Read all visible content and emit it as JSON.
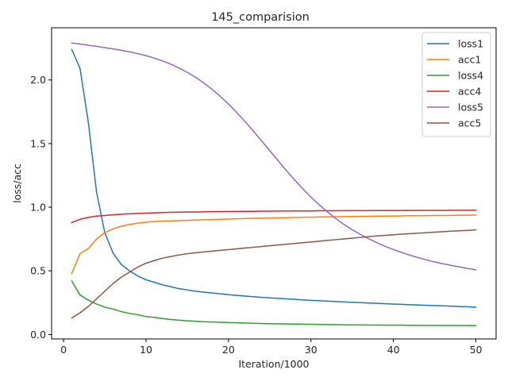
{
  "chart_data": {
    "type": "line",
    "title": "145_comparision",
    "xlabel": "Iteration/1000",
    "ylabel": "loss/acc",
    "xlim": [
      -1.45,
      52.45
    ],
    "ylim": [
      -0.035,
      2.41
    ],
    "xticks": [
      0,
      10,
      20,
      30,
      40,
      50
    ],
    "xtick_labels": [
      "0",
      "10",
      "20",
      "30",
      "40",
      "50"
    ],
    "yticks": [
      0.0,
      0.5,
      1.0,
      1.5,
      2.0
    ],
    "ytick_labels": [
      "0.0",
      "0.5",
      "1.0",
      "1.5",
      "2.0"
    ],
    "grid": false,
    "legend_position": "top-right",
    "x": [
      1,
      2,
      3,
      4,
      5,
      6,
      7,
      8,
      9,
      10,
      11,
      12,
      13,
      14,
      15,
      16,
      17,
      18,
      19,
      20,
      21,
      22,
      23,
      24,
      25,
      26,
      27,
      28,
      29,
      30,
      31,
      32,
      33,
      34,
      35,
      36,
      37,
      38,
      39,
      40,
      41,
      42,
      43,
      44,
      45,
      46,
      47,
      48,
      49,
      50
    ],
    "series": [
      {
        "name": "loss1",
        "color": "#1f77b4",
        "values": [
          2.24,
          2.09,
          1.67,
          1.12,
          0.8,
          0.64,
          0.55,
          0.5,
          0.46,
          0.43,
          0.41,
          0.39,
          0.375,
          0.36,
          0.35,
          0.34,
          0.333,
          0.326,
          0.32,
          0.313,
          0.307,
          0.302,
          0.297,
          0.292,
          0.288,
          0.284,
          0.28,
          0.276,
          0.272,
          0.268,
          0.265,
          0.262,
          0.259,
          0.256,
          0.253,
          0.25,
          0.247,
          0.245,
          0.242,
          0.239,
          0.237,
          0.234,
          0.232,
          0.229,
          0.227,
          0.225,
          0.222,
          0.22,
          0.218,
          0.214
        ]
      },
      {
        "name": "acc1",
        "color": "#ff7f0e",
        "values": [
          0.48,
          0.635,
          0.675,
          0.75,
          0.8,
          0.83,
          0.85,
          0.865,
          0.875,
          0.883,
          0.888,
          0.891,
          0.893,
          0.895,
          0.897,
          0.899,
          0.901,
          0.903,
          0.905,
          0.907,
          0.909,
          0.911,
          0.913,
          0.914,
          0.916,
          0.917,
          0.918,
          0.92,
          0.921,
          0.922,
          0.923,
          0.924,
          0.925,
          0.926,
          0.927,
          0.928,
          0.929,
          0.93,
          0.93,
          0.931,
          0.932,
          0.933,
          0.933,
          0.934,
          0.935,
          0.935,
          0.936,
          0.937,
          0.937,
          0.938
        ]
      },
      {
        "name": "loss4",
        "color": "#2ca02c",
        "values": [
          0.42,
          0.31,
          0.27,
          0.24,
          0.215,
          0.2,
          0.18,
          0.165,
          0.155,
          0.14,
          0.135,
          0.125,
          0.118,
          0.112,
          0.108,
          0.104,
          0.1,
          0.098,
          0.096,
          0.094,
          0.092,
          0.09,
          0.088,
          0.086,
          0.085,
          0.084,
          0.083,
          0.082,
          0.081,
          0.08,
          0.079,
          0.078,
          0.077,
          0.076,
          0.075,
          0.075,
          0.074,
          0.074,
          0.073,
          0.073,
          0.073,
          0.072,
          0.072,
          0.072,
          0.071,
          0.071,
          0.071,
          0.071,
          0.07,
          0.07
        ]
      },
      {
        "name": "acc4",
        "color": "#d62728",
        "values": [
          0.88,
          0.905,
          0.92,
          0.93,
          0.935,
          0.94,
          0.945,
          0.948,
          0.951,
          0.954,
          0.956,
          0.958,
          0.96,
          0.961,
          0.962,
          0.963,
          0.964,
          0.965,
          0.966,
          0.966,
          0.967,
          0.968,
          0.968,
          0.969,
          0.969,
          0.97,
          0.97,
          0.971,
          0.971,
          0.971,
          0.972,
          0.972,
          0.972,
          0.973,
          0.973,
          0.973,
          0.973,
          0.974,
          0.974,
          0.974,
          0.974,
          0.975,
          0.975,
          0.975,
          0.975,
          0.975,
          0.976,
          0.976,
          0.976,
          0.976
        ]
      },
      {
        "name": "loss5",
        "color": "#9467bd",
        "values": [
          2.29,
          2.282,
          2.273,
          2.264,
          2.254,
          2.244,
          2.233,
          2.221,
          2.207,
          2.191,
          2.172,
          2.15,
          2.124,
          2.094,
          2.06,
          2.021,
          1.977,
          1.927,
          1.872,
          1.811,
          1.745,
          1.674,
          1.6,
          1.523,
          1.445,
          1.367,
          1.29,
          1.216,
          1.146,
          1.08,
          1.019,
          0.963,
          0.912,
          0.865,
          0.823,
          0.786,
          0.752,
          0.721,
          0.693,
          0.667,
          0.644,
          0.623,
          0.604,
          0.586,
          0.57,
          0.556,
          0.543,
          0.531,
          0.519,
          0.508
        ]
      },
      {
        "name": "acc5",
        "color": "#8c564b",
        "values": [
          0.13,
          0.17,
          0.22,
          0.28,
          0.34,
          0.4,
          0.45,
          0.49,
          0.53,
          0.56,
          0.58,
          0.6,
          0.612,
          0.625,
          0.635,
          0.642,
          0.648,
          0.655,
          0.661,
          0.667,
          0.673,
          0.679,
          0.685,
          0.691,
          0.697,
          0.703,
          0.709,
          0.715,
          0.721,
          0.727,
          0.733,
          0.739,
          0.745,
          0.751,
          0.757,
          0.763,
          0.769,
          0.774,
          0.779,
          0.784,
          0.788,
          0.792,
          0.796,
          0.8,
          0.804,
          0.808,
          0.812,
          0.815,
          0.818,
          0.822
        ]
      }
    ]
  }
}
